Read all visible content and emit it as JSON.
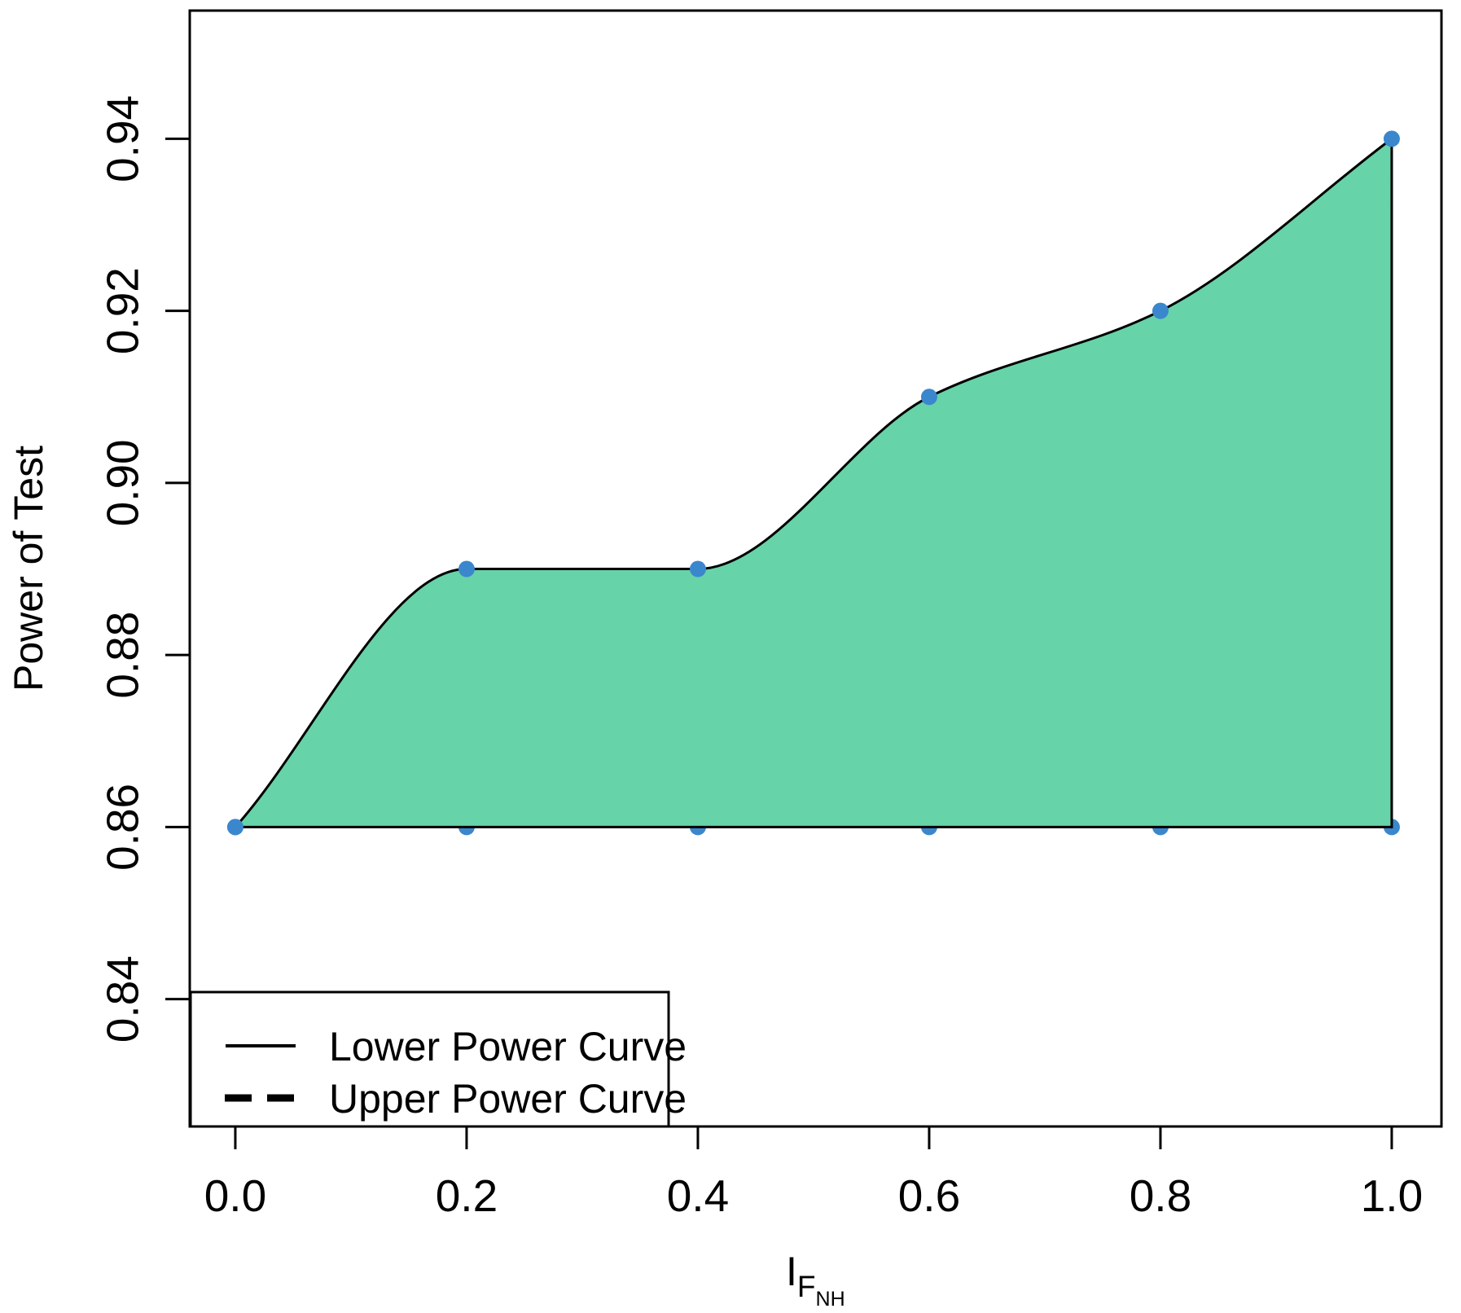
{
  "chart_data": {
    "type": "area",
    "title": "",
    "ylabel": "Power of Test",
    "xlabel_parts": {
      "main": "I",
      "sub": "F",
      "subsub": "NH"
    },
    "x": [
      0.0,
      0.2,
      0.4,
      0.6,
      0.8,
      1.0
    ],
    "series": [
      {
        "name": "Lower Power Curve",
        "line_style": "solid",
        "values": [
          0.86,
          0.86,
          0.86,
          0.86,
          0.86,
          0.86
        ]
      },
      {
        "name": "Upper Power Curve",
        "line_style": "dashed",
        "values": [
          0.86,
          0.89,
          0.89,
          0.91,
          0.92,
          0.94
        ]
      }
    ],
    "x_tick_labels": [
      "0.0",
      "0.2",
      "0.4",
      "0.6",
      "0.8",
      "1.0"
    ],
    "x_tick_values": [
      0.0,
      0.2,
      0.4,
      0.6,
      0.8,
      1.0
    ],
    "y_tick_labels": [
      "0.84",
      "0.86",
      "0.88",
      "0.90",
      "0.92",
      "0.94"
    ],
    "y_tick_values": [
      0.84,
      0.86,
      0.88,
      0.9,
      0.92,
      0.94
    ],
    "xlim": [
      -0.0394,
      1.043
    ],
    "ylim": [
      0.8252,
      0.9549
    ],
    "grid": false,
    "legend": {
      "position": "bottom-left",
      "entries": [
        {
          "label": "Lower Power Curve",
          "line": "solid"
        },
        {
          "label": "Upper Power Curve",
          "line": "dashed"
        }
      ]
    },
    "colors": {
      "area_fill": "#67D3A8",
      "point": "#3B87CD",
      "line": "#000000"
    }
  }
}
